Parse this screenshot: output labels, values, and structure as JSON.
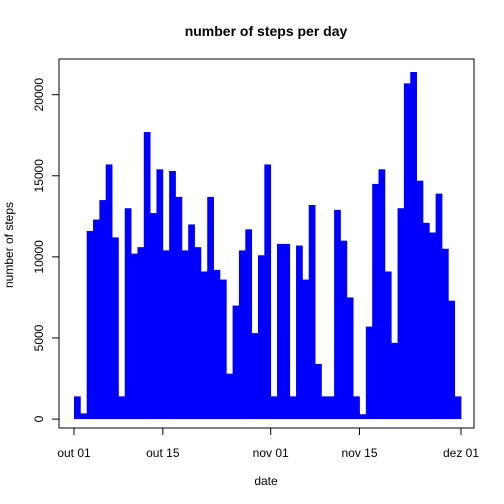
{
  "colors": {
    "bar": "#0000FF",
    "axis": "#000000",
    "background": "#FFFFFF"
  },
  "chart_data": {
    "type": "bar",
    "title": "number of steps per day",
    "xlabel": "date",
    "ylabel": "number of steps",
    "x_start": "2012-10-01",
    "x_end": "2012-12-01",
    "x_ticks": [
      {
        "date": "2012-10-01",
        "label": "out 01"
      },
      {
        "date": "2012-10-15",
        "label": "out 15"
      },
      {
        "date": "2012-11-01",
        "label": "nov 01"
      },
      {
        "date": "2012-11-15",
        "label": "nov 15"
      },
      {
        "date": "2012-12-01",
        "label": "dez 01"
      }
    ],
    "y_ticks": [
      0,
      5000,
      10000,
      15000,
      20000
    ],
    "ylim": [
      -550,
      22200
    ],
    "grid": false,
    "legend": "none",
    "categories": [
      "2012-10-01",
      "2012-10-02",
      "2012-10-03",
      "2012-10-04",
      "2012-10-05",
      "2012-10-06",
      "2012-10-07",
      "2012-10-08",
      "2012-10-09",
      "2012-10-10",
      "2012-10-11",
      "2012-10-12",
      "2012-10-13",
      "2012-10-14",
      "2012-10-15",
      "2012-10-16",
      "2012-10-17",
      "2012-10-18",
      "2012-10-19",
      "2012-10-20",
      "2012-10-21",
      "2012-10-22",
      "2012-10-23",
      "2012-10-24",
      "2012-10-25",
      "2012-10-26",
      "2012-10-27",
      "2012-10-28",
      "2012-10-29",
      "2012-10-30",
      "2012-10-31",
      "2012-11-01",
      "2012-11-02",
      "2012-11-03",
      "2012-11-04",
      "2012-11-05",
      "2012-11-06",
      "2012-11-07",
      "2012-11-08",
      "2012-11-09",
      "2012-11-10",
      "2012-11-11",
      "2012-11-12",
      "2012-11-13",
      "2012-11-14",
      "2012-11-15",
      "2012-11-16",
      "2012-11-17",
      "2012-11-18",
      "2012-11-19",
      "2012-11-20",
      "2012-11-21",
      "2012-11-22",
      "2012-11-23",
      "2012-11-24",
      "2012-11-25",
      "2012-11-26",
      "2012-11-27",
      "2012-11-28",
      "2012-11-29",
      "2012-11-30"
    ],
    "values": [
      1400,
      350,
      11600,
      12300,
      13500,
      15700,
      11200,
      1400,
      13000,
      10200,
      10600,
      17700,
      12700,
      15400,
      10400,
      15300,
      13700,
      10400,
      12000,
      10600,
      9100,
      13700,
      9200,
      8600,
      2800,
      7000,
      10400,
      11700,
      5300,
      10100,
      15700,
      1400,
      10800,
      10800,
      1400,
      10700,
      8600,
      13200,
      3400,
      1400,
      1400,
      12900,
      11000,
      7500,
      1400,
      300,
      5700,
      14500,
      15400,
      9100,
      4700,
      13000,
      20700,
      21400,
      14700,
      12100,
      11500,
      13900,
      10500,
      7300,
      1400
    ]
  }
}
